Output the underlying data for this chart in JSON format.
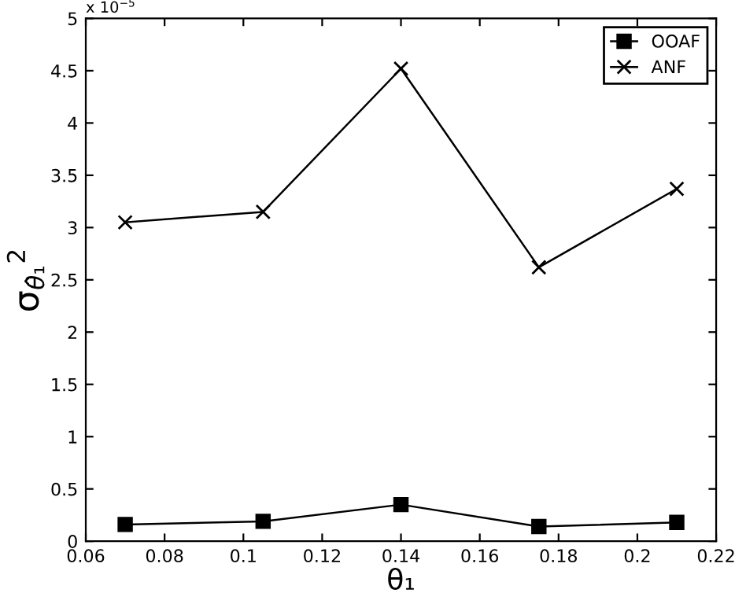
{
  "chart_data": {
    "type": "line",
    "xlabel": "θ₁",
    "ylabel": "σ$_{θ̂₁}$$^{2}$",
    "annotations": [
      "x 10$^{−5}$"
    ],
    "x": [
      0.07,
      0.105,
      0.14,
      0.175,
      0.21
    ],
    "series": [
      {
        "name": "OOAF",
        "color": "#000000",
        "marker": "square",
        "values": [
          0.16,
          0.19,
          0.35,
          0.14,
          0.18
        ]
      },
      {
        "name": "ANF",
        "color": "#000000",
        "marker": "cross",
        "values": [
          3.05,
          3.15,
          4.52,
          2.62,
          3.37
        ]
      }
    ],
    "xlim": [
      0.06,
      0.22
    ],
    "xticks": [
      0.06,
      0.08,
      0.1,
      0.12,
      0.14,
      0.16,
      0.18,
      0.2,
      0.22
    ],
    "ylim": [
      0,
      5
    ],
    "yticks": [
      0,
      0.5,
      1,
      1.5,
      2,
      2.5,
      3,
      3.5,
      4,
      4.5,
      5
    ],
    "grid": false,
    "legend": "top right",
    "line_style": "solid"
  }
}
